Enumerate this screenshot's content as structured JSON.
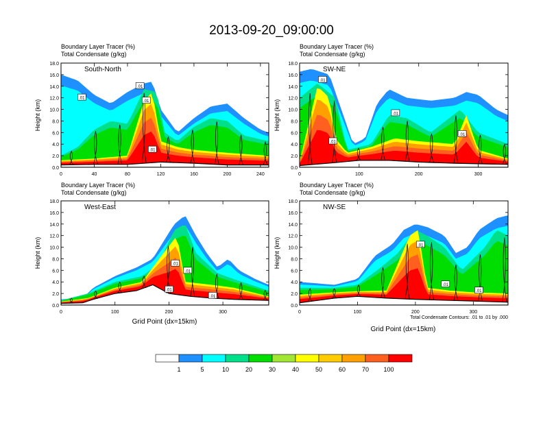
{
  "figure": {
    "title": "2013-09-20_09:00:00",
    "panel_header_line1": "Boundary Layer Tracer   (%)",
    "panel_header_line2": "Total Condensate   (g/kg)",
    "xlabel": "Grid Point (dx=15km)",
    "ylabel": "Height (km)",
    "contour_note": "Total Condensate Contours: .01 to .01 by .000"
  },
  "colorbar": {
    "colors": [
      "#ffffff",
      "#1e90ff",
      "#00ffff",
      "#00e08a",
      "#00dd00",
      "#a0e632",
      "#ffff00",
      "#ffcc00",
      "#ffa000",
      "#ff6020",
      "#ff0000"
    ],
    "labels": [
      "1",
      "5",
      "10",
      "20",
      "30",
      "40",
      "50",
      "60",
      "70",
      "100"
    ]
  },
  "chart_data": [
    {
      "type": "heatmap",
      "panel": "South-North",
      "ylim": [
        0,
        18
      ],
      "xlim": [
        0,
        250
      ],
      "y_ticks": [
        "0.0",
        "2.0",
        "4.0",
        "6.0",
        "8.0",
        "10.0",
        "12.0",
        "14.0",
        "16.0",
        "18.0"
      ],
      "x_ticks": [
        "0",
        "40",
        "80",
        "120",
        "160",
        "200",
        "240"
      ],
      "x_tick_values": [
        0,
        40,
        80,
        120,
        160,
        200,
        240
      ],
      "contour_labels": [
        ".01",
        ".01",
        ".01",
        ".01"
      ],
      "terrain": [
        [
          0,
          0.4
        ],
        [
          40,
          0.5
        ],
        [
          80,
          0.5
        ],
        [
          120,
          0.9
        ],
        [
          160,
          0.7
        ],
        [
          200,
          0.4
        ],
        [
          250,
          0.4
        ]
      ],
      "tracer_top": [
        [
          0,
          16.0
        ],
        [
          20,
          15.0
        ],
        [
          40,
          12.5
        ],
        [
          60,
          11.0
        ],
        [
          80,
          13.0
        ],
        [
          100,
          14.5
        ],
        [
          110,
          14.8
        ],
        [
          120,
          10.0
        ],
        [
          140,
          6.0
        ],
        [
          160,
          8.5
        ],
        [
          180,
          10.5
        ],
        [
          200,
          11.0
        ],
        [
          220,
          8.5
        ],
        [
          240,
          6.5
        ],
        [
          250,
          6.0
        ]
      ],
      "green_top": [
        [
          0,
          2.0
        ],
        [
          20,
          3.5
        ],
        [
          40,
          6.5
        ],
        [
          60,
          8.0
        ],
        [
          80,
          7.5
        ],
        [
          100,
          13.5
        ],
        [
          115,
          13.0
        ],
        [
          125,
          6.0
        ],
        [
          140,
          4.5
        ],
        [
          160,
          7.0
        ],
        [
          180,
          8.5
        ],
        [
          200,
          8.0
        ],
        [
          220,
          5.5
        ],
        [
          250,
          4.5
        ]
      ],
      "red_top": [
        [
          0,
          1.2
        ],
        [
          40,
          1.5
        ],
        [
          80,
          2.0
        ],
        [
          100,
          11.5
        ],
        [
          110,
          13.0
        ],
        [
          120,
          4.5
        ],
        [
          140,
          3.5
        ],
        [
          160,
          3.0
        ],
        [
          200,
          2.5
        ],
        [
          250,
          2.0
        ]
      ]
    },
    {
      "type": "heatmap",
      "panel": "SW-NE",
      "ylim": [
        0,
        18
      ],
      "xlim": [
        0,
        350
      ],
      "y_ticks": [
        "0.0",
        "2.0",
        "4.0",
        "6.0",
        "8.0",
        "10.0",
        "12.0",
        "14.0",
        "16.0",
        "18.0"
      ],
      "x_ticks": [
        "0",
        "100",
        "200",
        "300"
      ],
      "x_tick_values": [
        0,
        100,
        200,
        300
      ],
      "contour_labels": [
        ".01",
        ".01",
        ".01",
        ".01"
      ],
      "terrain": [
        [
          0,
          0.3
        ],
        [
          60,
          0.8
        ],
        [
          100,
          1.2
        ],
        [
          150,
          1.2
        ],
        [
          200,
          0.9
        ],
        [
          260,
          0.7
        ],
        [
          300,
          0.6
        ],
        [
          350,
          0.5
        ]
      ],
      "tracer_top": [
        [
          0,
          16.5
        ],
        [
          20,
          17.0
        ],
        [
          50,
          16.0
        ],
        [
          70,
          10.0
        ],
        [
          90,
          4.0
        ],
        [
          110,
          5.0
        ],
        [
          130,
          11.0
        ],
        [
          150,
          13.5
        ],
        [
          180,
          12.0
        ],
        [
          220,
          11.5
        ],
        [
          260,
          12.0
        ],
        [
          280,
          13.0
        ],
        [
          300,
          12.5
        ],
        [
          330,
          10.0
        ],
        [
          350,
          9.0
        ]
      ],
      "green_top": [
        [
          0,
          12.0
        ],
        [
          30,
          14.5
        ],
        [
          60,
          12.0
        ],
        [
          80,
          3.0
        ],
        [
          120,
          4.0
        ],
        [
          150,
          9.0
        ],
        [
          180,
          8.5
        ],
        [
          220,
          6.0
        ],
        [
          270,
          10.0
        ],
        [
          300,
          6.0
        ],
        [
          350,
          4.0
        ]
      ],
      "red_top": [
        [
          0,
          1.0
        ],
        [
          30,
          14.0
        ],
        [
          50,
          12.0
        ],
        [
          60,
          5.0
        ],
        [
          80,
          2.5
        ],
        [
          120,
          3.5
        ],
        [
          160,
          5.0
        ],
        [
          200,
          4.5
        ],
        [
          260,
          4.0
        ],
        [
          280,
          9.0
        ],
        [
          300,
          3.0
        ],
        [
          350,
          1.5
        ]
      ]
    },
    {
      "type": "heatmap",
      "panel": "West-East",
      "ylim": [
        0,
        18
      ],
      "xlim": [
        0,
        385
      ],
      "y_ticks": [
        "0.0",
        "2.0",
        "4.0",
        "6.0",
        "8.0",
        "10.0",
        "12.0",
        "14.0",
        "16.0",
        "18.0"
      ],
      "x_ticks": [
        "0",
        "100",
        "200",
        "300"
      ],
      "x_tick_values": [
        0,
        100,
        200,
        300
      ],
      "contour_labels": [
        ".01",
        ".01",
        ".01",
        ".01"
      ],
      "terrain": [
        [
          0,
          0.3
        ],
        [
          40,
          0.4
        ],
        [
          60,
          1.0
        ],
        [
          100,
          2.0
        ],
        [
          140,
          2.5
        ],
        [
          170,
          3.5
        ],
        [
          200,
          2.0
        ],
        [
          240,
          1.5
        ],
        [
          280,
          1.2
        ],
        [
          320,
          1.0
        ],
        [
          385,
          0.8
        ]
      ],
      "tracer_top": [
        [
          0,
          1.0
        ],
        [
          40,
          1.2
        ],
        [
          60,
          3.0
        ],
        [
          100,
          5.0
        ],
        [
          140,
          6.5
        ],
        [
          170,
          8.0
        ],
        [
          190,
          11.0
        ],
        [
          210,
          14.0
        ],
        [
          230,
          15.5
        ],
        [
          250,
          12.0
        ],
        [
          270,
          9.0
        ],
        [
          290,
          6.5
        ],
        [
          310,
          8.0
        ],
        [
          330,
          6.0
        ],
        [
          360,
          4.5
        ],
        [
          385,
          3.5
        ]
      ],
      "green_top": [
        [
          0,
          0.8
        ],
        [
          50,
          2.0
        ],
        [
          100,
          4.0
        ],
        [
          150,
          5.0
        ],
        [
          180,
          7.0
        ],
        [
          210,
          13.0
        ],
        [
          230,
          14.0
        ],
        [
          250,
          9.0
        ],
        [
          290,
          5.5
        ],
        [
          320,
          4.5
        ],
        [
          385,
          2.5
        ]
      ],
      "red_top": [
        [
          0,
          0.6
        ],
        [
          50,
          1.2
        ],
        [
          100,
          3.0
        ],
        [
          150,
          4.0
        ],
        [
          190,
          9.0
        ],
        [
          215,
          12.0
        ],
        [
          230,
          4.0
        ],
        [
          280,
          3.5
        ],
        [
          320,
          3.0
        ],
        [
          385,
          1.5
        ]
      ]
    },
    {
      "type": "heatmap",
      "panel": "NW-SE",
      "ylim": [
        0,
        18
      ],
      "xlim": [
        0,
        360
      ],
      "y_ticks": [
        "0.0",
        "2.0",
        "4.0",
        "6.0",
        "8.0",
        "10.0",
        "12.0",
        "14.0",
        "16.0",
        "18.0"
      ],
      "x_ticks": [
        "0",
        "100",
        "200",
        "300"
      ],
      "x_tick_values": [
        0,
        100,
        200,
        300
      ],
      "contour_labels": [
        ".01",
        ".01",
        ".01"
      ],
      "terrain": [
        [
          0,
          0.4
        ],
        [
          60,
          1.2
        ],
        [
          100,
          1.5
        ],
        [
          150,
          1.2
        ],
        [
          200,
          1.0
        ],
        [
          260,
          0.8
        ],
        [
          300,
          0.7
        ],
        [
          360,
          0.5
        ]
      ],
      "tracer_top": [
        [
          0,
          4.0
        ],
        [
          60,
          3.5
        ],
        [
          100,
          4.5
        ],
        [
          130,
          8.5
        ],
        [
          160,
          10.5
        ],
        [
          180,
          13.0
        ],
        [
          200,
          14.0
        ],
        [
          220,
          13.5
        ],
        [
          250,
          12.0
        ],
        [
          270,
          9.0
        ],
        [
          290,
          10.0
        ],
        [
          310,
          13.0
        ],
        [
          340,
          15.0
        ],
        [
          360,
          15.5
        ]
      ],
      "green_top": [
        [
          0,
          3.0
        ],
        [
          60,
          3.0
        ],
        [
          100,
          3.5
        ],
        [
          140,
          6.5
        ],
        [
          170,
          9.0
        ],
        [
          200,
          13.0
        ],
        [
          220,
          12.0
        ],
        [
          250,
          10.0
        ],
        [
          280,
          6.0
        ],
        [
          320,
          10.0
        ],
        [
          340,
          13.0
        ],
        [
          360,
          12.0
        ]
      ],
      "red_top": [
        [
          0,
          1.8
        ],
        [
          60,
          2.2
        ],
        [
          100,
          2.4
        ],
        [
          150,
          2.5
        ],
        [
          190,
          12.0
        ],
        [
          205,
          13.0
        ],
        [
          220,
          3.0
        ],
        [
          260,
          2.5
        ],
        [
          300,
          2.2
        ],
        [
          360,
          2.0
        ]
      ]
    }
  ]
}
